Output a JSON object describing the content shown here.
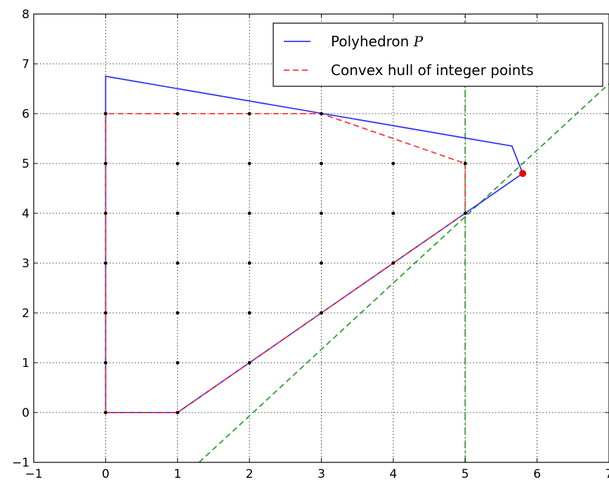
{
  "chart_data": {
    "type": "line",
    "xlim": [
      -1,
      7
    ],
    "ylim": [
      -1,
      8
    ],
    "xticks": [
      "−1",
      "0",
      "1",
      "2",
      "3",
      "4",
      "5",
      "6",
      "7"
    ],
    "yticks": [
      "−1",
      "0",
      "1",
      "2",
      "3",
      "4",
      "5",
      "6",
      "7",
      "8"
    ],
    "xtick_values": [
      -1,
      0,
      1,
      2,
      3,
      4,
      5,
      6,
      7
    ],
    "ytick_values": [
      -1,
      0,
      1,
      2,
      3,
      4,
      5,
      6,
      7,
      8
    ],
    "grid": true,
    "legend_position": "top-right",
    "series": [
      {
        "name": "Polyhedron",
        "name_math": "P",
        "style": "solid",
        "color": "#3333ff",
        "points": [
          [
            0,
            0
          ],
          [
            1,
            0
          ],
          [
            5.8,
            4.8
          ],
          [
            5.65,
            5.35
          ],
          [
            0,
            6.75
          ],
          [
            0,
            0
          ]
        ]
      },
      {
        "name": "Convex hull of integer points",
        "style": "dashed",
        "color": "#ff3333",
        "points": [
          [
            0,
            0
          ],
          [
            1,
            0
          ],
          [
            5,
            4
          ],
          [
            5,
            5
          ],
          [
            3,
            6
          ],
          [
            0,
            6
          ],
          [
            0,
            0
          ]
        ]
      }
    ],
    "extra_lines": [
      {
        "style": "dashed",
        "color": "#2ca02c",
        "points": [
          [
            1.3,
            -1
          ],
          [
            7,
            6.6
          ]
        ]
      },
      {
        "style": "dashdot",
        "color": "#2ca02c",
        "points": [
          [
            5,
            -1
          ],
          [
            5,
            8
          ]
        ]
      }
    ],
    "integer_points": [
      [
        0,
        0
      ],
      [
        1,
        0
      ],
      [
        0,
        1
      ],
      [
        1,
        1
      ],
      [
        2,
        1
      ],
      [
        0,
        2
      ],
      [
        1,
        2
      ],
      [
        2,
        2
      ],
      [
        3,
        2
      ],
      [
        0,
        3
      ],
      [
        1,
        3
      ],
      [
        2,
        3
      ],
      [
        3,
        3
      ],
      [
        4,
        3
      ],
      [
        0,
        4
      ],
      [
        1,
        4
      ],
      [
        2,
        4
      ],
      [
        3,
        4
      ],
      [
        4,
        4
      ],
      [
        5,
        4
      ],
      [
        0,
        5
      ],
      [
        1,
        5
      ],
      [
        2,
        5
      ],
      [
        3,
        5
      ],
      [
        4,
        5
      ],
      [
        5,
        5
      ],
      [
        0,
        6
      ],
      [
        1,
        6
      ],
      [
        2,
        6
      ],
      [
        3,
        6
      ]
    ],
    "highlight_point": {
      "x": 5.8,
      "y": 4.8,
      "color": "#ee0000"
    }
  }
}
